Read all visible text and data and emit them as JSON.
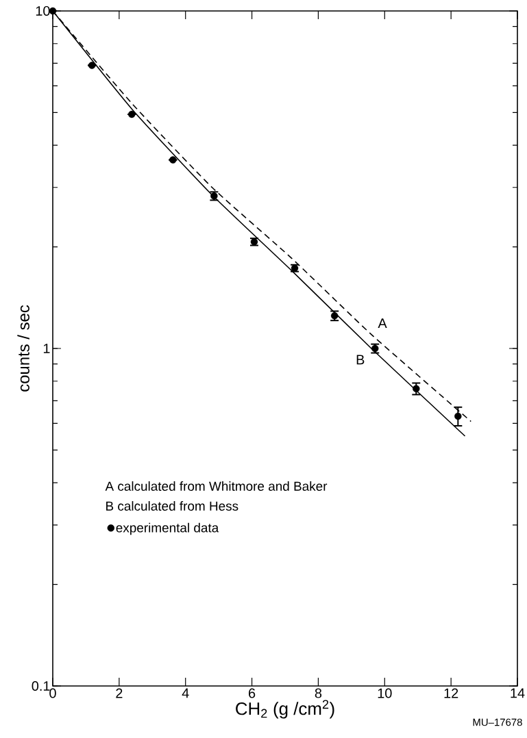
{
  "chart_data": {
    "type": "scatter",
    "xlabel": "CH$_{2}$ (g /cm$^{2}$)",
    "ylabel": "counts / sec",
    "log": "y",
    "xlim": [
      0,
      14
    ],
    "ylim": [
      0.1,
      10
    ],
    "xticks": [
      0,
      2,
      4,
      6,
      8,
      10,
      12,
      14
    ],
    "yticks": [
      0.1,
      1,
      10
    ],
    "grid": false,
    "legend": "bottom left",
    "series": [
      {
        "name": "experimental  data",
        "color": "#000000",
        "marker": "circle",
        "x": [
          0,
          1.18,
          2.38,
          3.62,
          4.86,
          6.07,
          7.29,
          8.49,
          9.71,
          10.95,
          12.21
        ],
        "values": [
          10,
          6.9,
          4.94,
          3.62,
          2.83,
          2.07,
          1.73,
          1.25,
          1.0,
          0.76,
          0.63
        ],
        "errors": [
          null,
          null,
          null,
          null,
          0.08,
          0.05,
          0.04,
          0.04,
          0.03,
          0.03,
          0.04
        ]
      },
      {
        "type": "line",
        "name": "A",
        "color": "#000000",
        "marker": "none",
        "line_style": "dashed",
        "x": [
          0,
          2.4,
          4.8,
          7.2,
          9.6,
          12.6
        ],
        "values": [
          10,
          5.3,
          3.0,
          1.85,
          1.1,
          0.608
        ]
      },
      {
        "type": "line",
        "name": "B",
        "color": "#000000",
        "marker": "none",
        "line_style": "solid",
        "x": [
          0,
          2.4,
          4.8,
          7.2,
          9.6,
          12.42
        ],
        "values": [
          10,
          5.1,
          2.85,
          1.7,
          1.0,
          0.55
        ]
      }
    ],
    "annotations": [
      "A  calculated  from  Whitmore  and  Baker",
      "B  calculated  from  Hess",
      "MU–17678"
    ]
  }
}
